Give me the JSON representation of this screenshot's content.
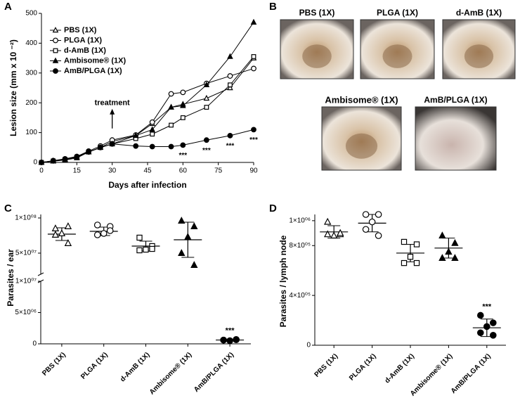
{
  "panel_labels": [
    "A",
    "B",
    "C",
    "D"
  ],
  "photos": {
    "labels": [
      "PBS (1X)",
      "PLGA (1X)",
      "d-AmB (1X)",
      "Ambisome® (1X)",
      "AmB/PLGA (1X)"
    ]
  },
  "chart_data": [
    {
      "type": "line",
      "xlabel": "Days after infection",
      "ylabel": "Lesion  size (mm x 10 ⁻²)",
      "x": [
        0,
        5,
        10,
        15,
        20,
        25,
        30,
        40,
        47,
        55,
        60,
        70,
        80,
        90
      ],
      "xlim": [
        0,
        90
      ],
      "xticks": [
        0,
        15,
        30,
        45,
        60,
        75,
        90
      ],
      "ylim": [
        0,
        500
      ],
      "yticks": [
        0,
        100,
        200,
        300,
        400,
        500
      ],
      "legend": "upper left",
      "series": [
        {
          "name": "PBS (1X)",
          "color": "#000000",
          "marker": "triangle-open",
          "values": [
            0,
            5,
            10,
            18,
            35,
            50,
            70,
            90,
            130,
            185,
            195,
            215,
            250,
            350
          ]
        },
        {
          "name": "PLGA (1X)",
          "color": "#000000",
          "marker": "circle-open",
          "values": [
            0,
            6,
            12,
            20,
            38,
            55,
            75,
            92,
            135,
            230,
            235,
            265,
            290,
            315
          ]
        },
        {
          "name": "d-AmB (1X)",
          "color": "#000000",
          "marker": "square-open",
          "values": [
            0,
            5,
            10,
            18,
            35,
            50,
            62,
            80,
            95,
            125,
            150,
            185,
            260,
            355
          ]
        },
        {
          "name": "Ambisome® (1X)",
          "color": "#000000",
          "marker": "triangle-filled",
          "values": [
            0,
            4,
            8,
            15,
            35,
            50,
            62,
            90,
            110,
            185,
            190,
            260,
            355,
            470
          ]
        },
        {
          "name": "AmB/PLGA (1X)",
          "color": "#000000",
          "marker": "circle-filled",
          "values": [
            0,
            5,
            10,
            18,
            35,
            50,
            62,
            55,
            53,
            53,
            58,
            75,
            90,
            110
          ]
        }
      ],
      "treatment": {
        "text": "treatment",
        "x": 30
      },
      "annotations": [
        {
          "text": "***",
          "x": 60
        },
        {
          "text": "***",
          "x": 70
        },
        {
          "text": "***",
          "x": 80
        },
        {
          "text": "***",
          "x": 90
        }
      ]
    },
    {
      "type": "dot",
      "ylabel": "Parasites / ear",
      "categories": [
        "PBS (1X)",
        "PLGA (1X)",
        "d-AmB (1X)",
        "Ambisome® (1X)",
        "AmB/PLGA (1X)"
      ],
      "ylim": [
        0,
        105000000
      ],
      "ybreak": [
        10000000,
        20000000
      ],
      "yticks": [
        0,
        {
          "value": 5000000,
          "label": "5×10⁰⁶"
        },
        {
          "value": 10000000,
          "label": "1×10⁰⁷"
        },
        {
          "value": 50000000,
          "label": "5×10⁰⁷"
        },
        {
          "value": 100000000,
          "label": "1×10⁰⁸"
        }
      ],
      "groups": [
        {
          "marker": "triangle-open",
          "values": [
            85000000,
            88000000,
            78000000,
            76000000,
            64000000
          ],
          "mean": 77000000,
          "sd": 9000000
        },
        {
          "marker": "circle-open",
          "values": [
            90000000,
            88000000,
            78000000,
            76000000,
            82000000
          ],
          "mean": 81000000,
          "sd": 6000000
        },
        {
          "marker": "square-open",
          "values": [
            72000000,
            60000000,
            55000000,
            54000000,
            56000000
          ],
          "mean": 60000000,
          "sd": 7000000
        },
        {
          "marker": "triangle-filled",
          "values": [
            96000000,
            88000000,
            73000000,
            50000000,
            33000000
          ],
          "mean": 69000000,
          "sd": 25000000
        },
        {
          "marker": "circle-filled",
          "values": [
            600000,
            700000,
            500000,
            600000,
            650000
          ],
          "mean": 610000,
          "sd": 80000
        }
      ],
      "annotations": [
        {
          "text": "***",
          "category": 4
        }
      ]
    },
    {
      "type": "dot",
      "ylabel": "Parasites / lymph node",
      "categories": [
        "PBS (1X)",
        "PLGA (1X)",
        "d-AmB (1X)",
        "Ambisome® (1X)",
        "AmB/PLGA (1X)"
      ],
      "ylim": [
        0,
        1050000
      ],
      "yticks": [
        0,
        {
          "value": 400000,
          "label": "4×10⁰⁵"
        },
        {
          "value": 800000,
          "label": "8×10⁰⁵"
        },
        {
          "value": 1000000,
          "label": "1×10⁰⁶"
        }
      ],
      "groups": [
        {
          "marker": "triangle-open",
          "values": [
            990000,
            890000,
            880000,
            890000,
            900000
          ],
          "mean": 910000,
          "sd": 50000
        },
        {
          "marker": "circle-open",
          "values": [
            1050000,
            1050000,
            990000,
            930000,
            880000
          ],
          "mean": 980000,
          "sd": 70000
        },
        {
          "marker": "square-open",
          "values": [
            830000,
            810000,
            710000,
            660000,
            660000
          ],
          "mean": 740000,
          "sd": 70000
        },
        {
          "marker": "triangle-filled",
          "values": [
            880000,
            820000,
            750000,
            700000,
            700000
          ],
          "mean": 780000,
          "sd": 80000
        },
        {
          "marker": "circle-filled",
          "values": [
            240000,
            180000,
            150000,
            100000,
            80000
          ],
          "mean": 140000,
          "sd": 70000
        }
      ],
      "annotations": [
        {
          "text": "***",
          "category": 4
        }
      ]
    }
  ]
}
